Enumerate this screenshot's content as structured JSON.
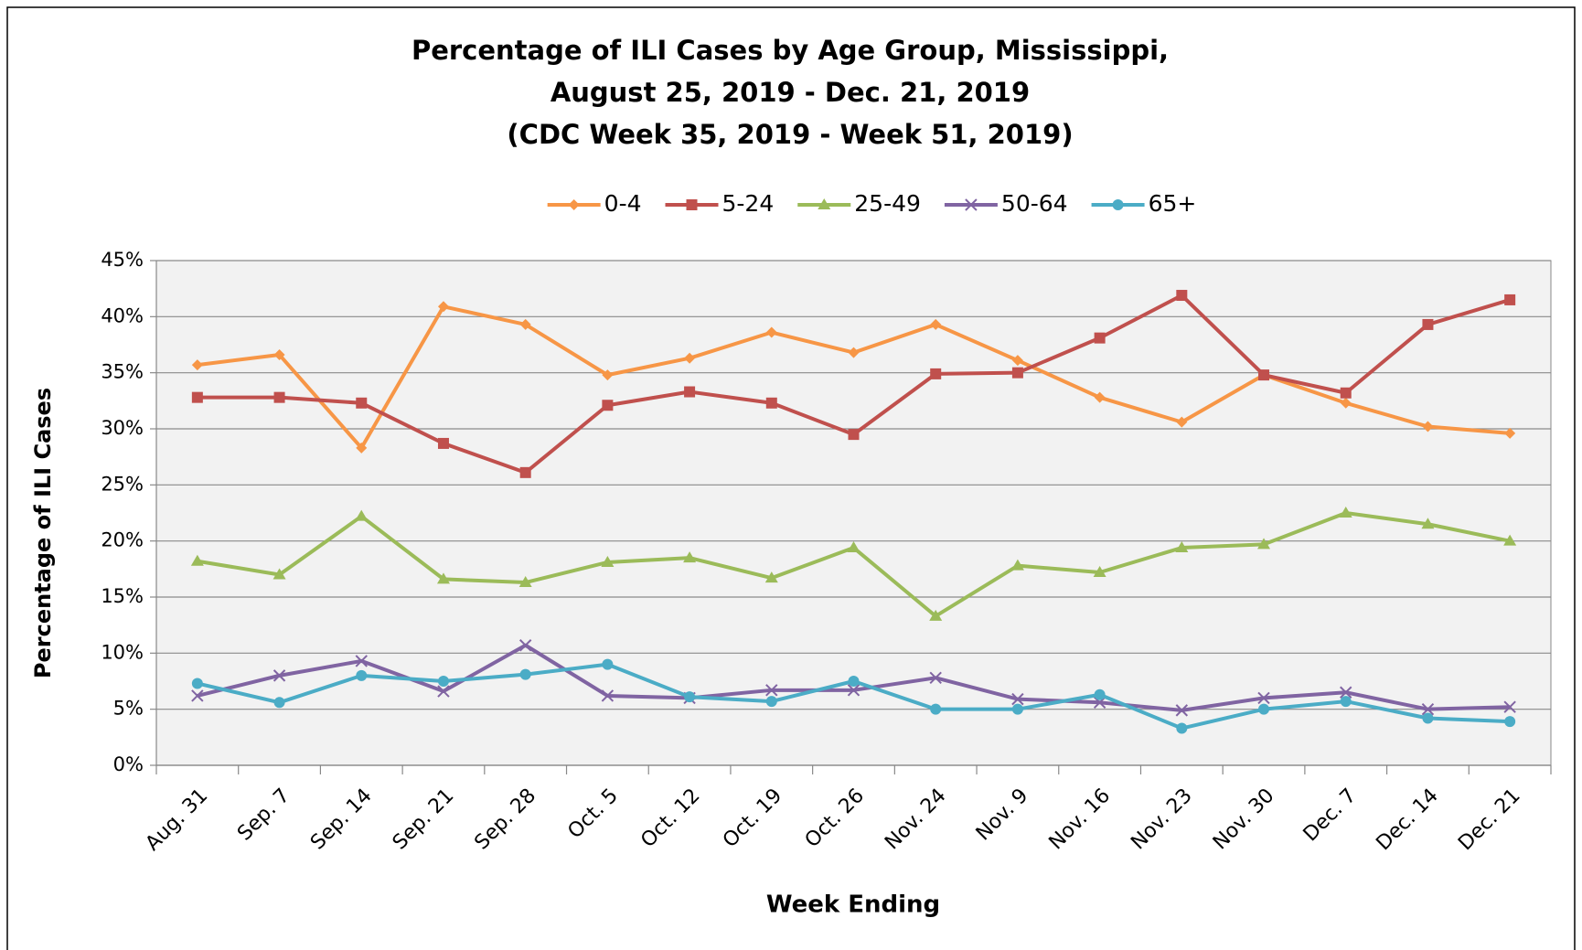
{
  "chart_data": {
    "type": "line",
    "title": [
      "Percentage of ILI Cases by Age Group, Mississippi,",
      "August 25, 2019 - Dec. 21, 2019",
      "(CDC Week 35, 2019 - Week 51, 2019)"
    ],
    "x_label": "Week Ending",
    "y_label": "Percentage of ILI Cases",
    "categories": [
      "Aug. 31",
      "Sep. 7",
      "Sep. 14",
      "Sep. 21",
      "Sep. 28",
      "Oct. 5",
      "Oct. 12",
      "Oct. 19",
      "Oct. 26",
      "Nov. 24",
      "Nov. 9",
      "Nov. 16",
      "Nov. 23",
      "Nov. 30",
      "Dec. 7",
      "Dec. 14",
      "Dec. 21"
    ],
    "series": [
      {
        "name": "0-4",
        "color": "#f79646",
        "marker": "diamond",
        "values": [
          35.7,
          36.6,
          28.3,
          40.9,
          39.3,
          34.8,
          36.3,
          38.6,
          36.8,
          39.3,
          36.1,
          32.8,
          30.6,
          34.8,
          32.3,
          30.2,
          29.6
        ]
      },
      {
        "name": "5-24",
        "color": "#c0504d",
        "marker": "square",
        "values": [
          32.8,
          32.8,
          32.3,
          28.7,
          26.1,
          32.1,
          33.3,
          32.3,
          29.5,
          34.9,
          35.0,
          38.1,
          41.9,
          34.8,
          33.2,
          39.3,
          41.5
        ]
      },
      {
        "name": "25-49",
        "color": "#9bbb59",
        "marker": "triangle",
        "values": [
          18.2,
          17.0,
          22.2,
          16.6,
          16.3,
          18.1,
          18.5,
          16.7,
          19.4,
          13.3,
          17.8,
          17.2,
          19.4,
          19.7,
          22.5,
          21.5,
          20.0
        ]
      },
      {
        "name": "50-64",
        "color": "#8064a2",
        "marker": "x",
        "values": [
          6.2,
          8.0,
          9.3,
          6.6,
          10.7,
          6.2,
          6.0,
          6.7,
          6.7,
          7.8,
          5.9,
          5.6,
          4.9,
          6.0,
          6.5,
          5.0,
          5.2
        ]
      },
      {
        "name": "65+",
        "color": "#4bacc6",
        "marker": "circle",
        "values": [
          7.3,
          5.6,
          8.0,
          7.5,
          8.1,
          9.0,
          6.1,
          5.7,
          7.5,
          5.0,
          5.0,
          6.3,
          3.3,
          5.0,
          5.7,
          4.2,
          3.9
        ]
      }
    ],
    "ylim": [
      0,
      45
    ],
    "yticks": [
      {
        "value": 0,
        "label": "0%"
      },
      {
        "value": 5,
        "label": "5%"
      },
      {
        "value": 10,
        "label": "10%"
      },
      {
        "value": 15,
        "label": "15%"
      },
      {
        "value": 20,
        "label": "20%"
      },
      {
        "value": 25,
        "label": "25%"
      },
      {
        "value": 30,
        "label": "30%"
      },
      {
        "value": 35,
        "label": "35%"
      },
      {
        "value": 40,
        "label": "40%"
      },
      {
        "value": 45,
        "label": "45%"
      }
    ],
    "grid": true,
    "legend": "top"
  }
}
